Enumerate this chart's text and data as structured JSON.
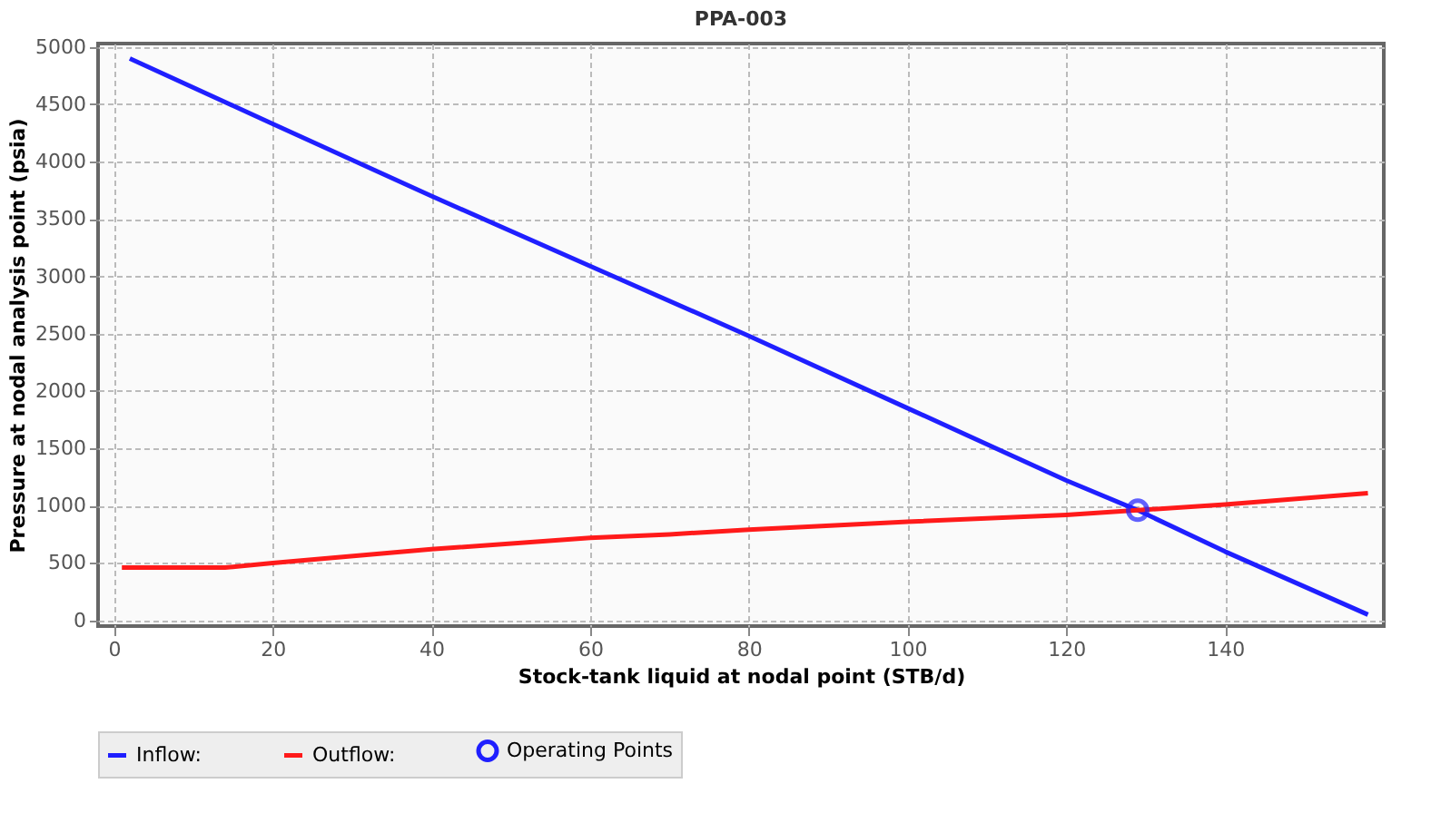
{
  "chart_data": {
    "type": "line",
    "title": "PPA-003",
    "xlabel": "Stock-tank liquid at nodal point (STB/d)",
    "ylabel": "Pressure at nodal analysis point (psia)",
    "xlim": [
      -2,
      160
    ],
    "ylim": [
      -50,
      5030
    ],
    "xticks": [
      0,
      20,
      40,
      60,
      80,
      100,
      120,
      140
    ],
    "yticks": [
      0,
      500,
      1000,
      1500,
      2000,
      2500,
      3000,
      3500,
      4000,
      4500,
      5000
    ],
    "grid": true,
    "legend": "bottom",
    "line_style": "solid",
    "series": [
      {
        "name": "Inflow:",
        "color": "#1f1fff",
        "x": [
          2,
          20,
          40,
          60,
          80,
          100,
          120,
          129,
          140,
          158
        ],
        "values": [
          4900,
          4330,
          3700,
          3090,
          2480,
          1850,
          1220,
          960,
          600,
          50
        ]
      },
      {
        "name": "Outflow:",
        "color": "#ff1a1a",
        "x": [
          1,
          14,
          20,
          40,
          60,
          70,
          80,
          100,
          120,
          129,
          140,
          158
        ],
        "values": [
          460,
          460,
          500,
          620,
          720,
          750,
          790,
          860,
          920,
          960,
          1010,
          1110
        ]
      },
      {
        "name": "Operating Points",
        "type": "scatter",
        "marker": "circle",
        "color": "#1f1fff",
        "x": [
          129
        ],
        "values": [
          960
        ]
      }
    ]
  }
}
